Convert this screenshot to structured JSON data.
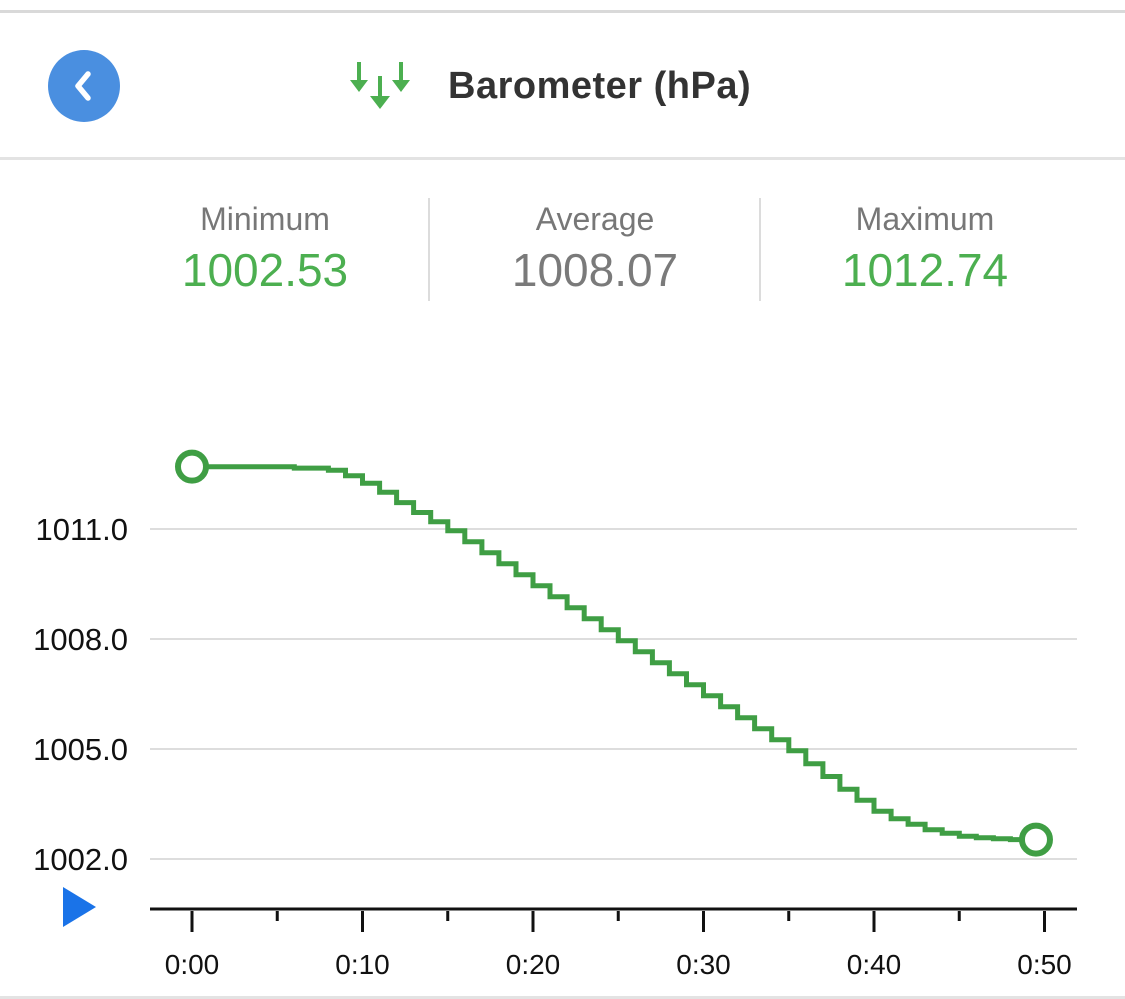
{
  "header": {
    "title": "Barometer (hPa)",
    "back_icon": "chevron-left-icon",
    "title_icon": "pressure-down-arrows-icon"
  },
  "stats": [
    {
      "label": "Minimum",
      "value": "1002.53",
      "color": "#4caf50"
    },
    {
      "label": "Average",
      "value": "1008.07",
      "color": "#7a7a7a"
    },
    {
      "label": "Maximum",
      "value": "1012.74",
      "color": "#4caf50"
    }
  ],
  "colors": {
    "accent": "#4a8fe0",
    "line": "#3f9e44",
    "grid": "#dddddd",
    "play": "#1a73e8"
  },
  "controls": {
    "play_icon": "play-icon"
  },
  "chart_data": {
    "type": "line",
    "title": "",
    "xlabel": "",
    "ylabel": "",
    "x_ticks": [
      "0:00",
      "0:10",
      "0:20",
      "0:30",
      "0:40",
      "0:50"
    ],
    "y_ticks": [
      1002.0,
      1005.0,
      1008.0,
      1011.0
    ],
    "y_tick_labels": [
      "1002.0",
      "1005.0",
      "1008.0",
      "1011.0"
    ],
    "ylim": [
      1000.0,
      1013.0
    ],
    "xlim_minutes": [
      0,
      52
    ],
    "grid": true,
    "series": [
      {
        "color": "#3f9e44",
        "points": [
          [
            0,
            1012.7
          ],
          [
            3,
            1012.7
          ],
          [
            6,
            1012.66
          ],
          [
            8,
            1012.6
          ],
          [
            9,
            1012.45
          ],
          [
            10,
            1012.25
          ],
          [
            11,
            1012.0
          ],
          [
            12,
            1011.72
          ],
          [
            13,
            1011.45
          ],
          [
            14,
            1011.2
          ],
          [
            15,
            1010.95
          ],
          [
            16,
            1010.65
          ],
          [
            17,
            1010.35
          ],
          [
            18,
            1010.05
          ],
          [
            19,
            1009.75
          ],
          [
            20,
            1009.45
          ],
          [
            21,
            1009.15
          ],
          [
            22,
            1008.85
          ],
          [
            23,
            1008.55
          ],
          [
            24,
            1008.25
          ],
          [
            25,
            1007.95
          ],
          [
            26,
            1007.65
          ],
          [
            27,
            1007.35
          ],
          [
            28,
            1007.05
          ],
          [
            29,
            1006.75
          ],
          [
            30,
            1006.45
          ],
          [
            31,
            1006.15
          ],
          [
            32,
            1005.85
          ],
          [
            33,
            1005.55
          ],
          [
            34,
            1005.25
          ],
          [
            35,
            1004.95
          ],
          [
            36,
            1004.6
          ],
          [
            37,
            1004.25
          ],
          [
            38,
            1003.9
          ],
          [
            39,
            1003.6
          ],
          [
            40,
            1003.3
          ],
          [
            41,
            1003.1
          ],
          [
            42,
            1002.95
          ],
          [
            43,
            1002.8
          ],
          [
            44,
            1002.7
          ],
          [
            45,
            1002.62
          ],
          [
            46,
            1002.58
          ],
          [
            47,
            1002.55
          ],
          [
            48,
            1002.53
          ],
          [
            49.5,
            1002.53
          ]
        ],
        "start_marker": [
          0,
          1012.7
        ],
        "end_marker": [
          49.5,
          1002.53
        ]
      }
    ]
  }
}
